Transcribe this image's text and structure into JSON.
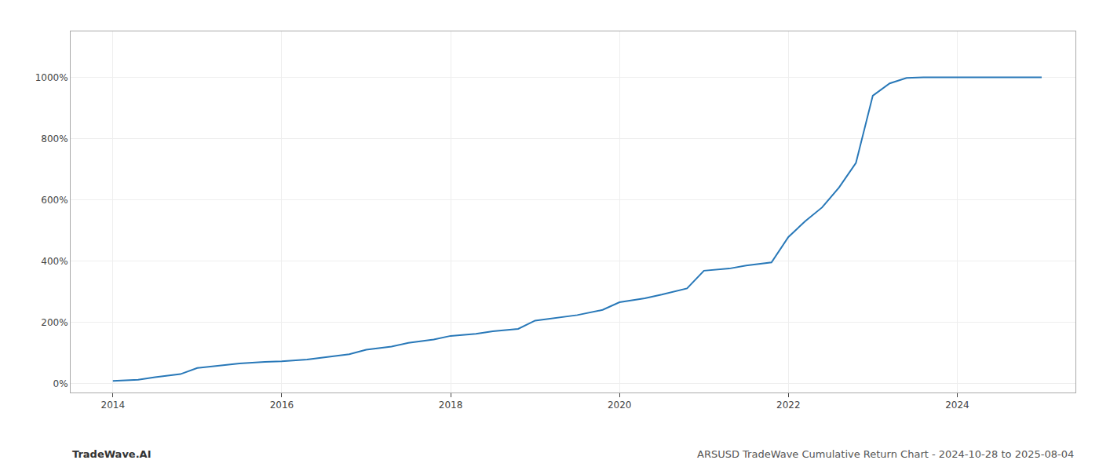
{
  "chart_data": {
    "type": "line",
    "title": "ARSUSD TradeWave Cumulative Return Chart - 2024-10-28 to 2025-08-04",
    "annotations": [
      "TradeWave.AI"
    ],
    "x": [
      2014.0,
      2014.3,
      2014.5,
      2014.8,
      2015.0,
      2015.3,
      2015.5,
      2015.8,
      2016.0,
      2016.3,
      2016.5,
      2016.8,
      2017.0,
      2017.3,
      2017.5,
      2017.8,
      2018.0,
      2018.3,
      2018.5,
      2018.8,
      2019.0,
      2019.3,
      2019.5,
      2019.8,
      2020.0,
      2020.3,
      2020.5,
      2020.8,
      2021.0,
      2021.3,
      2021.5,
      2021.8,
      2022.0,
      2022.2,
      2022.4,
      2022.6,
      2022.8,
      2023.0,
      2023.2,
      2023.4,
      2023.6,
      2023.8,
      2024.0,
      2024.5,
      2025.0
    ],
    "values": [
      8,
      12,
      20,
      30,
      50,
      58,
      65,
      70,
      72,
      78,
      85,
      95,
      110,
      120,
      132,
      143,
      155,
      162,
      170,
      178,
      205,
      215,
      223,
      240,
      265,
      278,
      290,
      310,
      368,
      375,
      385,
      395,
      478,
      530,
      575,
      640,
      720,
      940,
      980,
      998,
      1000,
      1000,
      1000,
      1000,
      1000
    ],
    "color": "#2878b8",
    "xlim": [
      2013.5,
      2025.4
    ],
    "xticks": [
      2014,
      2016,
      2018,
      2020,
      2022,
      2024
    ],
    "ylim": [
      -30,
      1150
    ],
    "yticks": [
      {
        "value": 0,
        "label": "0%"
      },
      {
        "value": 200,
        "label": "200%"
      },
      {
        "value": 400,
        "label": "400%"
      },
      {
        "value": 600,
        "label": "600%"
      },
      {
        "value": 800,
        "label": "800%"
      },
      {
        "value": 1000,
        "label": "1000%"
      }
    ],
    "grid": true
  }
}
